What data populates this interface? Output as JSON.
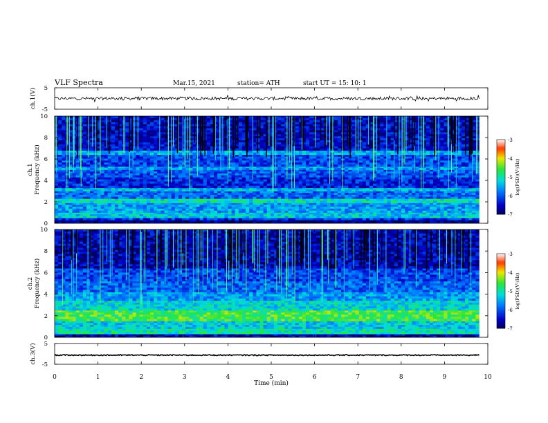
{
  "header": {
    "title": "VLF  Spectra",
    "date": "Mar.15, 2021",
    "station": "station= ATH",
    "start_ut": "start  UT  =    15: 10: 1"
  },
  "chart_data": [
    {
      "type": "line",
      "name": "ch1-waveform",
      "ylabel": "ch.1(V)",
      "ylim": [
        -5,
        5
      ],
      "yticks": [
        "5",
        "-5"
      ],
      "xlim": [
        0,
        10
      ],
      "mean": 0.0,
      "amplitude": 0.7,
      "color": "#000000"
    },
    {
      "type": "heatmap",
      "name": "ch1-spectrogram",
      "ylabel": "ch.1\nFrequency  (kHz)",
      "ylim": [
        0,
        10
      ],
      "yticks": [
        "0",
        "2",
        "4",
        "6",
        "8",
        "10"
      ],
      "xlim": [
        0,
        9.8
      ],
      "background": "#0a2a9a",
      "bands": [
        {
          "f": [
            0.0,
            0.3
          ],
          "level": -6.8
        },
        {
          "f": [
            0.3,
            0.5
          ],
          "level": -6.2
        },
        {
          "f": [
            0.5,
            1.0
          ],
          "level": -5.3
        },
        {
          "f": [
            1.0,
            1.9
          ],
          "level": -5.6
        },
        {
          "f": [
            1.9,
            2.3
          ],
          "level": -5.1
        },
        {
          "f": [
            2.3,
            3.0
          ],
          "level": -5.9
        },
        {
          "f": [
            3.0,
            3.3
          ],
          "level": -5.4
        },
        {
          "f": [
            3.3,
            4.3
          ],
          "level": -6.3
        },
        {
          "f": [
            4.3,
            5.0
          ],
          "level": -6.0
        },
        {
          "f": [
            5.0,
            5.3
          ],
          "level": -5.6
        },
        {
          "f": [
            5.3,
            6.4
          ],
          "level": -6.1
        },
        {
          "f": [
            6.4,
            6.8
          ],
          "level": -5.5
        },
        {
          "f": [
            6.8,
            10.0
          ],
          "level": -6.5
        }
      ]
    },
    {
      "type": "heatmap",
      "name": "ch2-spectrogram",
      "ylabel": "ch.2\nFrequency  (kHz)",
      "ylim": [
        0,
        10
      ],
      "yticks": [
        "0",
        "2",
        "4",
        "6",
        "8",
        "10"
      ],
      "xlim": [
        0,
        9.8
      ],
      "background": "#0a2a9a",
      "bands": [
        {
          "f": [
            0.0,
            0.3
          ],
          "level": -6.6
        },
        {
          "f": [
            0.3,
            0.8
          ],
          "level": -5.0
        },
        {
          "f": [
            0.8,
            1.5
          ],
          "level": -5.3
        },
        {
          "f": [
            1.5,
            2.5
          ],
          "level": -4.6
        },
        {
          "f": [
            2.5,
            3.4
          ],
          "level": -5.2
        },
        {
          "f": [
            3.4,
            4.2
          ],
          "level": -5.6
        },
        {
          "f": [
            4.2,
            5.2
          ],
          "level": -5.9
        },
        {
          "f": [
            5.2,
            6.4
          ],
          "level": -6.1
        },
        {
          "f": [
            6.4,
            10.0
          ],
          "level": -6.6
        }
      ]
    },
    {
      "type": "line",
      "name": "ch3-waveform",
      "ylabel": "ch.3(V)",
      "ylim": [
        -5,
        5
      ],
      "yticks": [
        "5",
        "-5"
      ],
      "xlim": [
        0,
        10
      ],
      "mean": -0.6,
      "amplitude": 0.25,
      "color": "#000000"
    }
  ],
  "colorbar": {
    "label": "log(PSD)(V²/Hz)",
    "ticks": [
      "-3",
      "-4",
      "-5",
      "-6",
      "-7"
    ],
    "range": [
      -7,
      -3
    ]
  },
  "xaxis": {
    "label": "Time  (min)",
    "range": [
      0,
      10
    ],
    "ticks": [
      "0",
      "1",
      "2",
      "3",
      "4",
      "5",
      "6",
      "7",
      "8",
      "9",
      "10"
    ]
  }
}
